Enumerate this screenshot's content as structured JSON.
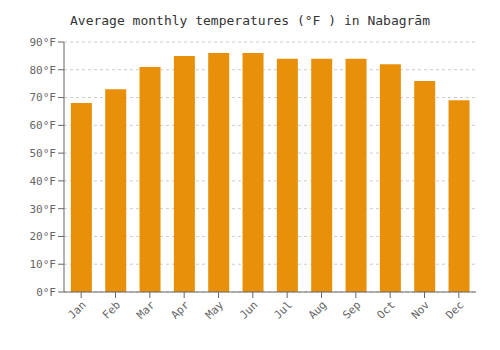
{
  "chart_data": {
    "type": "bar",
    "title": "Average monthly temperatures (°F ) in Nabagrām",
    "categories": [
      "Jan",
      "Feb",
      "Mar",
      "Apr",
      "May",
      "Jun",
      "Jul",
      "Aug",
      "Sep",
      "Oct",
      "Nov",
      "Dec"
    ],
    "values": [
      68,
      73,
      81,
      85,
      86,
      86,
      84,
      84,
      84,
      82,
      76,
      69
    ],
    "color": "#E8900A",
    "ylim": [
      0,
      90
    ],
    "yticks": [
      {
        "value": 0,
        "label": "0°F"
      },
      {
        "value": 10,
        "label": "10°F"
      },
      {
        "value": 20,
        "label": "20°F"
      },
      {
        "value": 30,
        "label": "30°F"
      },
      {
        "value": 40,
        "label": "40°F"
      },
      {
        "value": 50,
        "label": "50°F"
      },
      {
        "value": 60,
        "label": "60°F"
      },
      {
        "value": 70,
        "label": "70°F"
      },
      {
        "value": 80,
        "label": "80°F"
      },
      {
        "value": 90,
        "label": "90°F"
      }
    ],
    "grid": true
  }
}
